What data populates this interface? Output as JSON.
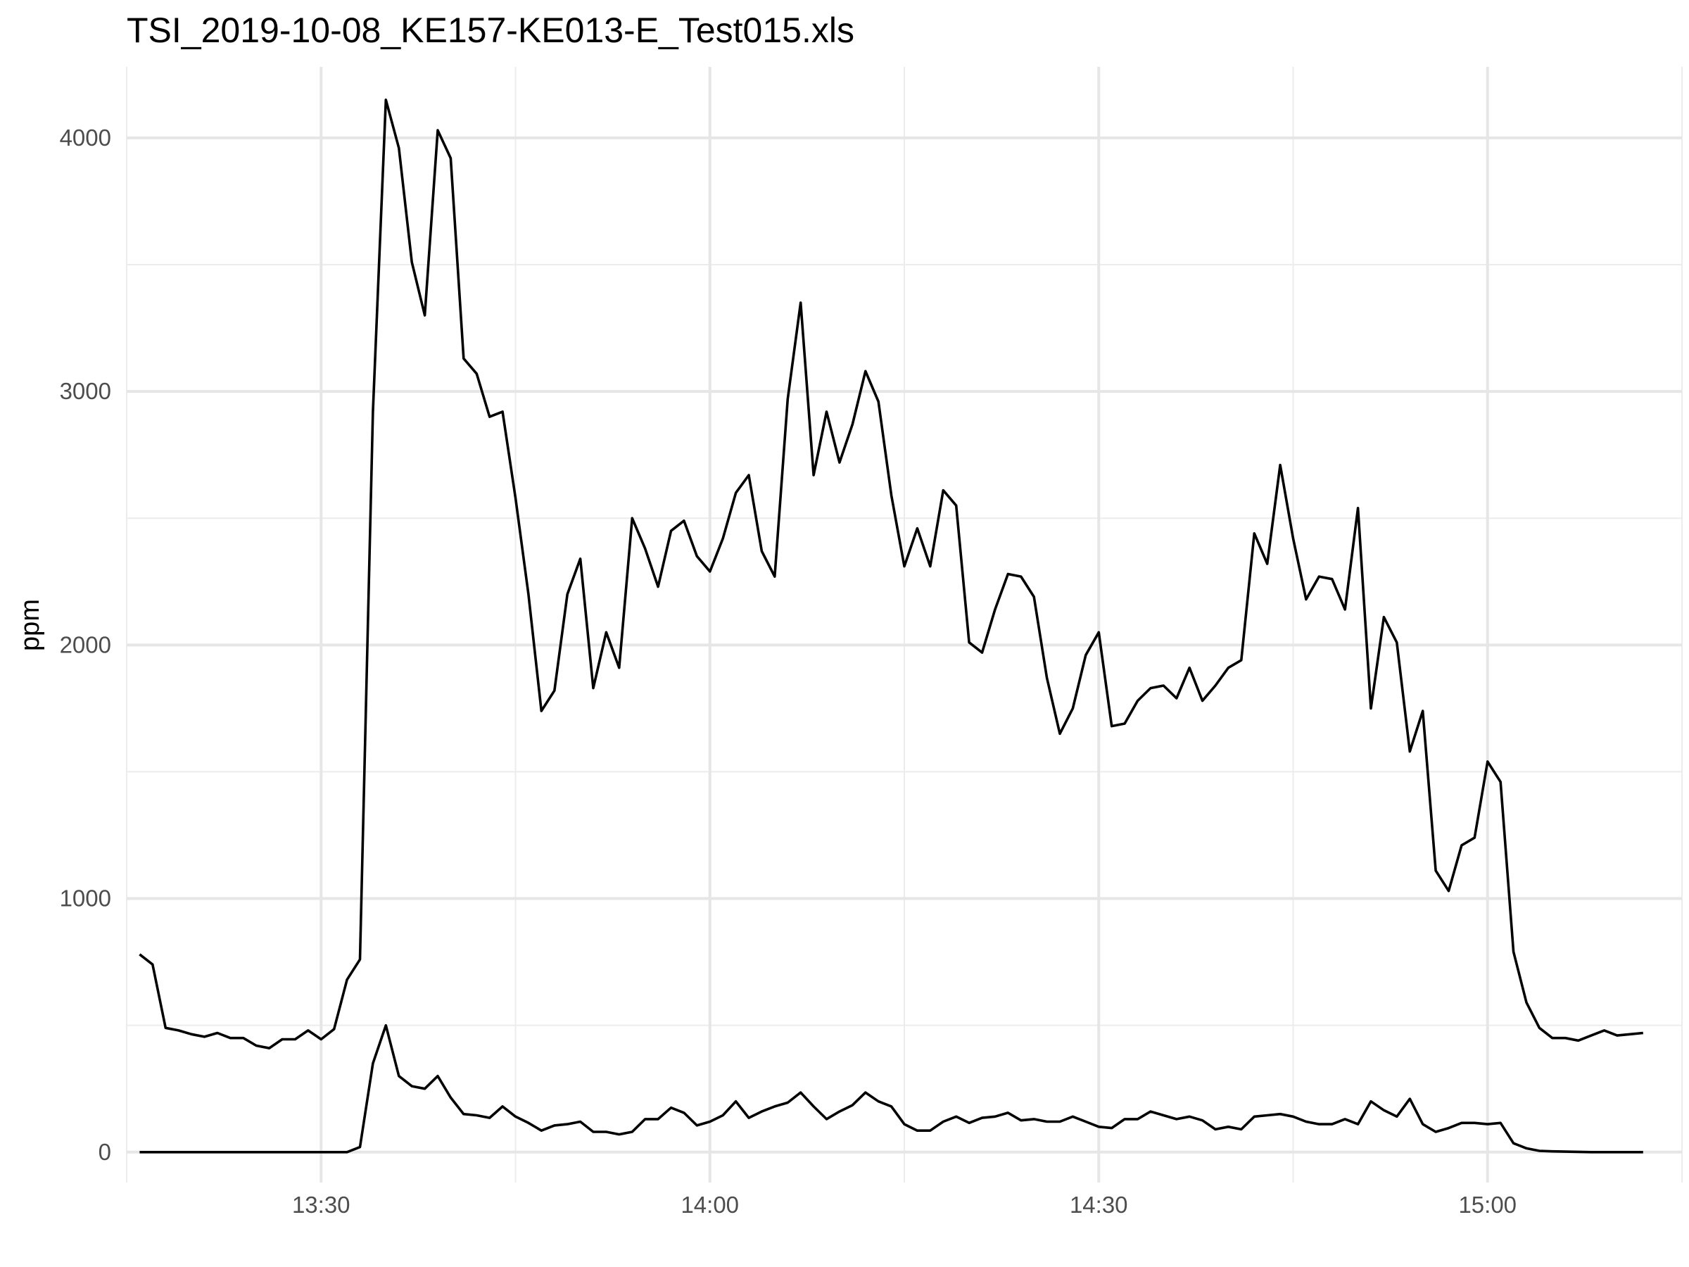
{
  "chart_data": {
    "type": "line",
    "title": "TSI_2019-10-08_KE157-KE013-E_Test015.xls",
    "xlabel": "",
    "ylabel": "ppm",
    "x_tick_labels": [
      "13:30",
      "14:00",
      "14:30",
      "15:00"
    ],
    "x_tick_minutes": [
      810,
      840,
      870,
      900
    ],
    "y_ticks": [
      0,
      1000,
      2000,
      3000,
      4000
    ],
    "xlim_minutes": [
      795,
      915
    ],
    "ylim": [
      -120,
      4280
    ],
    "grid": true,
    "legend": "none",
    "line_color": "#000000",
    "series": [
      {
        "x_minutes": [
          796,
          797,
          798,
          799,
          800,
          801,
          802,
          803,
          804,
          805,
          806,
          807,
          808,
          809,
          810,
          811,
          812,
          813,
          814,
          815,
          816,
          817,
          818,
          819,
          820,
          821,
          822,
          823,
          824,
          825,
          826,
          827,
          828,
          829,
          830,
          831,
          832,
          833,
          834,
          835,
          836,
          837,
          838,
          839,
          840,
          841,
          842,
          843,
          844,
          845,
          846,
          847,
          848,
          849,
          850,
          851,
          852,
          853,
          854,
          855,
          856,
          857,
          858,
          859,
          860,
          861,
          862,
          863,
          864,
          865,
          866,
          867,
          868,
          869,
          870,
          871,
          872,
          873,
          874,
          875,
          876,
          877,
          878,
          879,
          880,
          881,
          882,
          883,
          884,
          885,
          886,
          887,
          888,
          889,
          890,
          891,
          892,
          893,
          894,
          895,
          896,
          897,
          898,
          899,
          900,
          901,
          902,
          903,
          904,
          905,
          906,
          907,
          908,
          909,
          910,
          911,
          912
        ],
        "values": [
          780,
          740,
          490,
          480,
          465,
          455,
          470,
          450,
          450,
          420,
          410,
          445,
          445,
          480,
          445,
          485,
          680,
          760,
          2920,
          4150,
          3960,
          3510,
          3300,
          4030,
          3920,
          3130,
          3070,
          2900,
          2920,
          2580,
          2200,
          1740,
          1820,
          2200,
          2340,
          1830,
          2050,
          1910,
          2500,
          2380,
          2230,
          2450,
          2490,
          2350,
          2290,
          2420,
          2600,
          2670,
          2370,
          2270,
          2970,
          3350,
          2670,
          2920,
          2720,
          2870,
          3080,
          2960,
          2590,
          2310,
          2460,
          2310,
          2610,
          2550,
          2010,
          1970,
          2140,
          2280,
          2270,
          2190,
          1870,
          1650,
          1750,
          1960,
          2050,
          1680,
          1690,
          1780,
          1830,
          1840,
          1790,
          1910,
          1780,
          1840,
          1910,
          1940,
          2440,
          2320,
          2710,
          2420,
          2180,
          2270,
          2260,
          2140,
          2540,
          1750,
          2110,
          2010,
          1580,
          1740,
          1110,
          1030,
          1210,
          1240,
          1540,
          1460,
          790,
          590,
          490,
          450,
          450,
          440,
          460,
          480,
          460,
          465,
          470
        ]
      },
      {
        "x_minutes": [
          796,
          797,
          798,
          799,
          800,
          801,
          802,
          803,
          804,
          805,
          806,
          807,
          808,
          809,
          810,
          811,
          812,
          813,
          814,
          815,
          816,
          817,
          818,
          819,
          820,
          821,
          822,
          823,
          824,
          825,
          826,
          827,
          828,
          829,
          830,
          831,
          832,
          833,
          834,
          835,
          836,
          837,
          838,
          839,
          840,
          841,
          842,
          843,
          844,
          845,
          846,
          847,
          848,
          849,
          850,
          851,
          852,
          853,
          854,
          855,
          856,
          857,
          858,
          859,
          860,
          861,
          862,
          863,
          864,
          865,
          866,
          867,
          868,
          869,
          870,
          871,
          872,
          873,
          874,
          875,
          876,
          877,
          878,
          879,
          880,
          881,
          882,
          883,
          884,
          885,
          886,
          887,
          888,
          889,
          890,
          891,
          892,
          893,
          894,
          895,
          896,
          897,
          898,
          899,
          900,
          901,
          902,
          903,
          904,
          905,
          906,
          907,
          908,
          909,
          910,
          911,
          912
        ],
        "values": [
          0,
          0,
          0,
          0,
          0,
          0,
          0,
          0,
          0,
          0,
          0,
          0,
          0,
          0,
          0,
          0,
          0,
          20,
          350,
          500,
          300,
          260,
          250,
          300,
          215,
          150,
          145,
          135,
          180,
          140,
          115,
          85,
          105,
          110,
          120,
          80,
          80,
          70,
          80,
          130,
          130,
          175,
          155,
          105,
          120,
          145,
          200,
          135,
          160,
          180,
          195,
          235,
          180,
          130,
          160,
          185,
          235,
          200,
          180,
          110,
          85,
          85,
          120,
          140,
          115,
          135,
          140,
          155,
          125,
          130,
          120,
          120,
          140,
          120,
          100,
          95,
          130,
          130,
          160,
          145,
          130,
          140,
          125,
          90,
          100,
          90,
          140,
          145,
          150,
          140,
          120,
          110,
          110,
          130,
          110,
          200,
          165,
          140,
          210,
          110,
          80,
          95,
          115,
          115,
          110,
          115,
          35,
          15,
          5,
          3,
          2,
          1,
          0,
          0,
          0,
          0,
          0
        ]
      }
    ]
  }
}
